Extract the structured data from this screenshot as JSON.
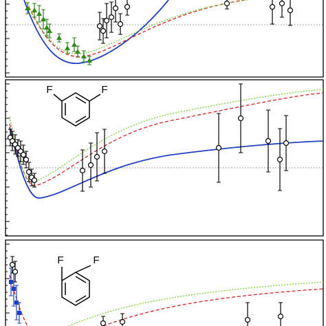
{
  "molecules": [
    {
      "atoms": [
        "F",
        "F"
      ]
    },
    {
      "atoms": [
        "F",
        "F"
      ]
    }
  ]
}
